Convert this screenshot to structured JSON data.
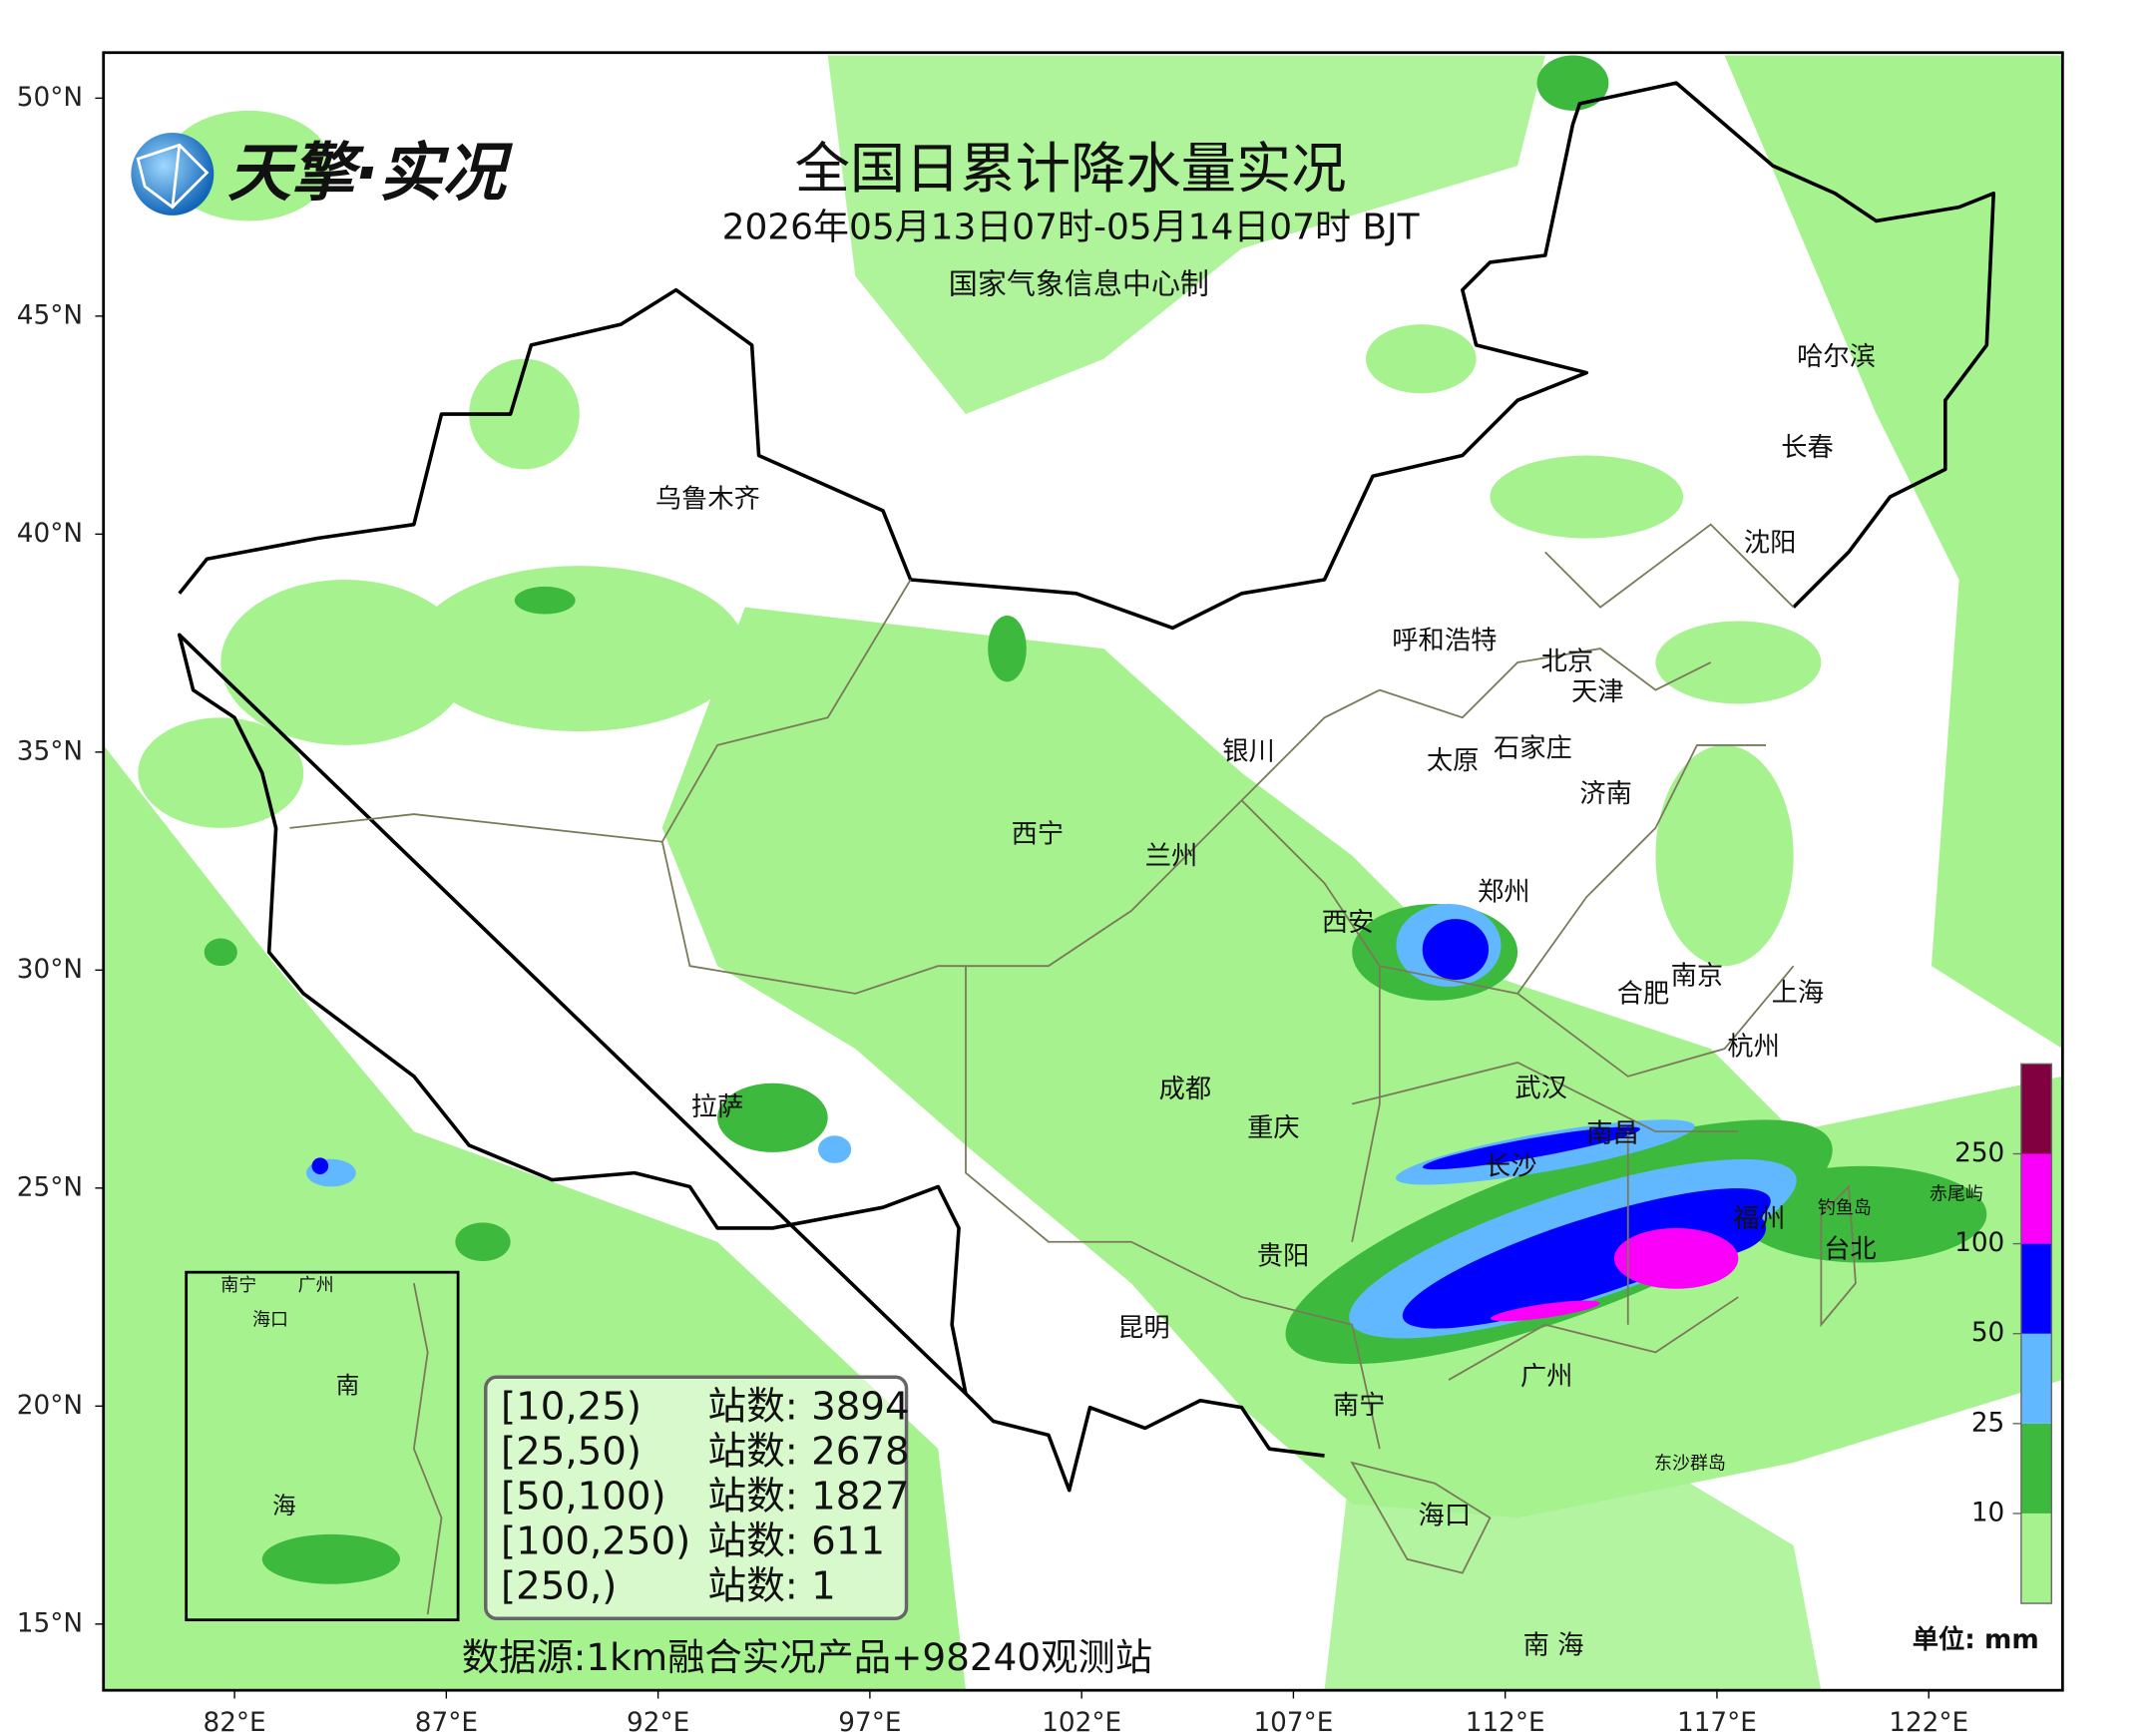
{
  "header": {
    "title": "全国日累计降水量实况",
    "time": "2026年05月13日07时-05月14日07时 BJT",
    "producer": "国家气象信息中心制",
    "brand": "天擎·实况"
  },
  "axes": {
    "lat_ticks": [
      {
        "value": 50,
        "label": "50°N"
      },
      {
        "value": 45,
        "label": "45°N"
      },
      {
        "value": 40,
        "label": "40°N"
      },
      {
        "value": 35,
        "label": "35°N"
      },
      {
        "value": 30,
        "label": "30°N"
      },
      {
        "value": 25,
        "label": "25°N"
      },
      {
        "value": 20,
        "label": "20°N"
      },
      {
        "value": 15,
        "label": "15°N"
      }
    ],
    "lon_ticks": [
      {
        "value": 82,
        "label": "82°E"
      },
      {
        "value": 87,
        "label": "87°E"
      },
      {
        "value": 92,
        "label": "92°E"
      },
      {
        "value": 97,
        "label": "97°E"
      },
      {
        "value": 102,
        "label": "102°E"
      },
      {
        "value": 107,
        "label": "107°E"
      },
      {
        "value": 112,
        "label": "112°E"
      },
      {
        "value": 117,
        "label": "117°E"
      },
      {
        "value": 122,
        "label": "122°E"
      }
    ]
  },
  "places": [
    "乌鲁木齐",
    "哈尔滨",
    "长春",
    "沈阳",
    "呼和浩特",
    "北京",
    "天津",
    "银川",
    "石家庄",
    "太原",
    "济南",
    "西宁",
    "兰州",
    "郑州",
    "西安",
    "南京",
    "合肥",
    "上海",
    "杭州",
    "成都",
    "武汉",
    "拉萨",
    "重庆",
    "南昌",
    "长沙",
    "福州",
    "钓鱼岛",
    "赤尾屿",
    "台北",
    "贵阳",
    "昆明",
    "广州",
    "南宁",
    "东沙群岛",
    "海口",
    "南 海"
  ],
  "inset": {
    "labels": [
      "南宁",
      "广州",
      "海口",
      "南",
      "海"
    ]
  },
  "stations": {
    "count_label": "站数:",
    "rows": [
      {
        "range": "[10,25)",
        "count": 3894
      },
      {
        "range": "[25,50)",
        "count": 2678
      },
      {
        "range": "[50,100)",
        "count": 1827
      },
      {
        "range": "[100,250)",
        "count": 611
      },
      {
        "range": "[250,)",
        "count": 1
      }
    ]
  },
  "source": "数据源:1km融合实况产品+98240观测站",
  "colorbar": {
    "unit": "单位: mm",
    "ticks": [
      10,
      25,
      50,
      100,
      250
    ],
    "colors": [
      "#a6f28f",
      "#3dba3d",
      "#61b8ff",
      "#0000fe",
      "#fa00fa",
      "#800040"
    ]
  }
}
